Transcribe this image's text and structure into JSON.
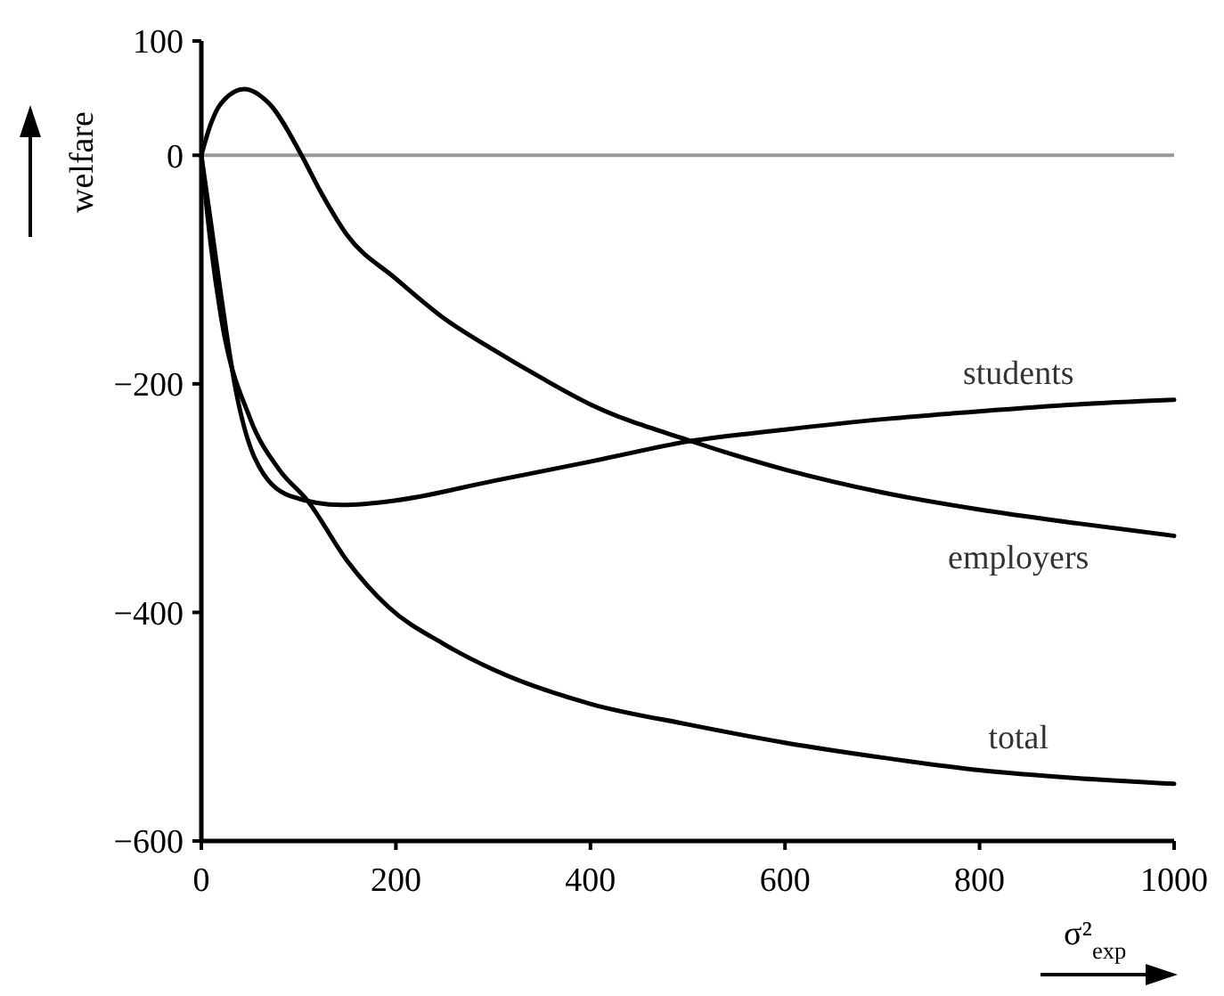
{
  "chart_data": {
    "type": "line",
    "xlabel": "σ²$_{exp}$",
    "ylabel": "welfare",
    "xlim": [
      0,
      1000
    ],
    "ylim": [
      -600,
      100
    ],
    "xticks": [
      0,
      200,
      400,
      600,
      800,
      1000
    ],
    "yticks": [
      100,
      0,
      -200,
      -400,
      -600
    ],
    "grid": false,
    "marker": "none",
    "line_style": "solid",
    "ref_lines": [
      {
        "axis": "y",
        "value": 0,
        "color": "#999999"
      }
    ],
    "series": [
      {
        "name": "students",
        "color": "#000000",
        "x": [
          0,
          10,
          18,
          36,
          55,
          91,
          145,
          200,
          300,
          400,
          503,
          600,
          700,
          800,
          900,
          1000
        ],
        "values": [
          0,
          -60,
          -109,
          -208,
          -265,
          -298,
          -306,
          -302,
          -285,
          -268,
          -250,
          -240,
          -231,
          -224,
          -218,
          -214
        ]
      },
      {
        "name": "employers",
        "color": "#000000",
        "x": [
          0,
          10,
          20,
          44,
          70,
          103,
          122,
          150,
          200,
          250,
          300,
          350,
          400,
          503,
          600,
          700,
          800,
          900,
          1000
        ],
        "values": [
          0,
          28,
          45,
          58,
          45,
          0,
          -31,
          -70,
          -108,
          -143,
          -170,
          -195,
          -218,
          -250,
          -275,
          -295,
          -310,
          -322,
          -333
        ]
      },
      {
        "name": "total",
        "color": "#000000",
        "x": [
          0,
          10,
          20,
          50,
          80,
          109,
          150,
          192,
          250,
          300,
          400,
          500,
          600,
          700,
          800,
          900,
          1000
        ],
        "values": [
          0,
          -80,
          -140,
          -230,
          -275,
          -302,
          -355,
          -395,
          -428,
          -450,
          -480,
          -498,
          -514,
          -527,
          -538,
          -545,
          -550
        ]
      }
    ]
  }
}
